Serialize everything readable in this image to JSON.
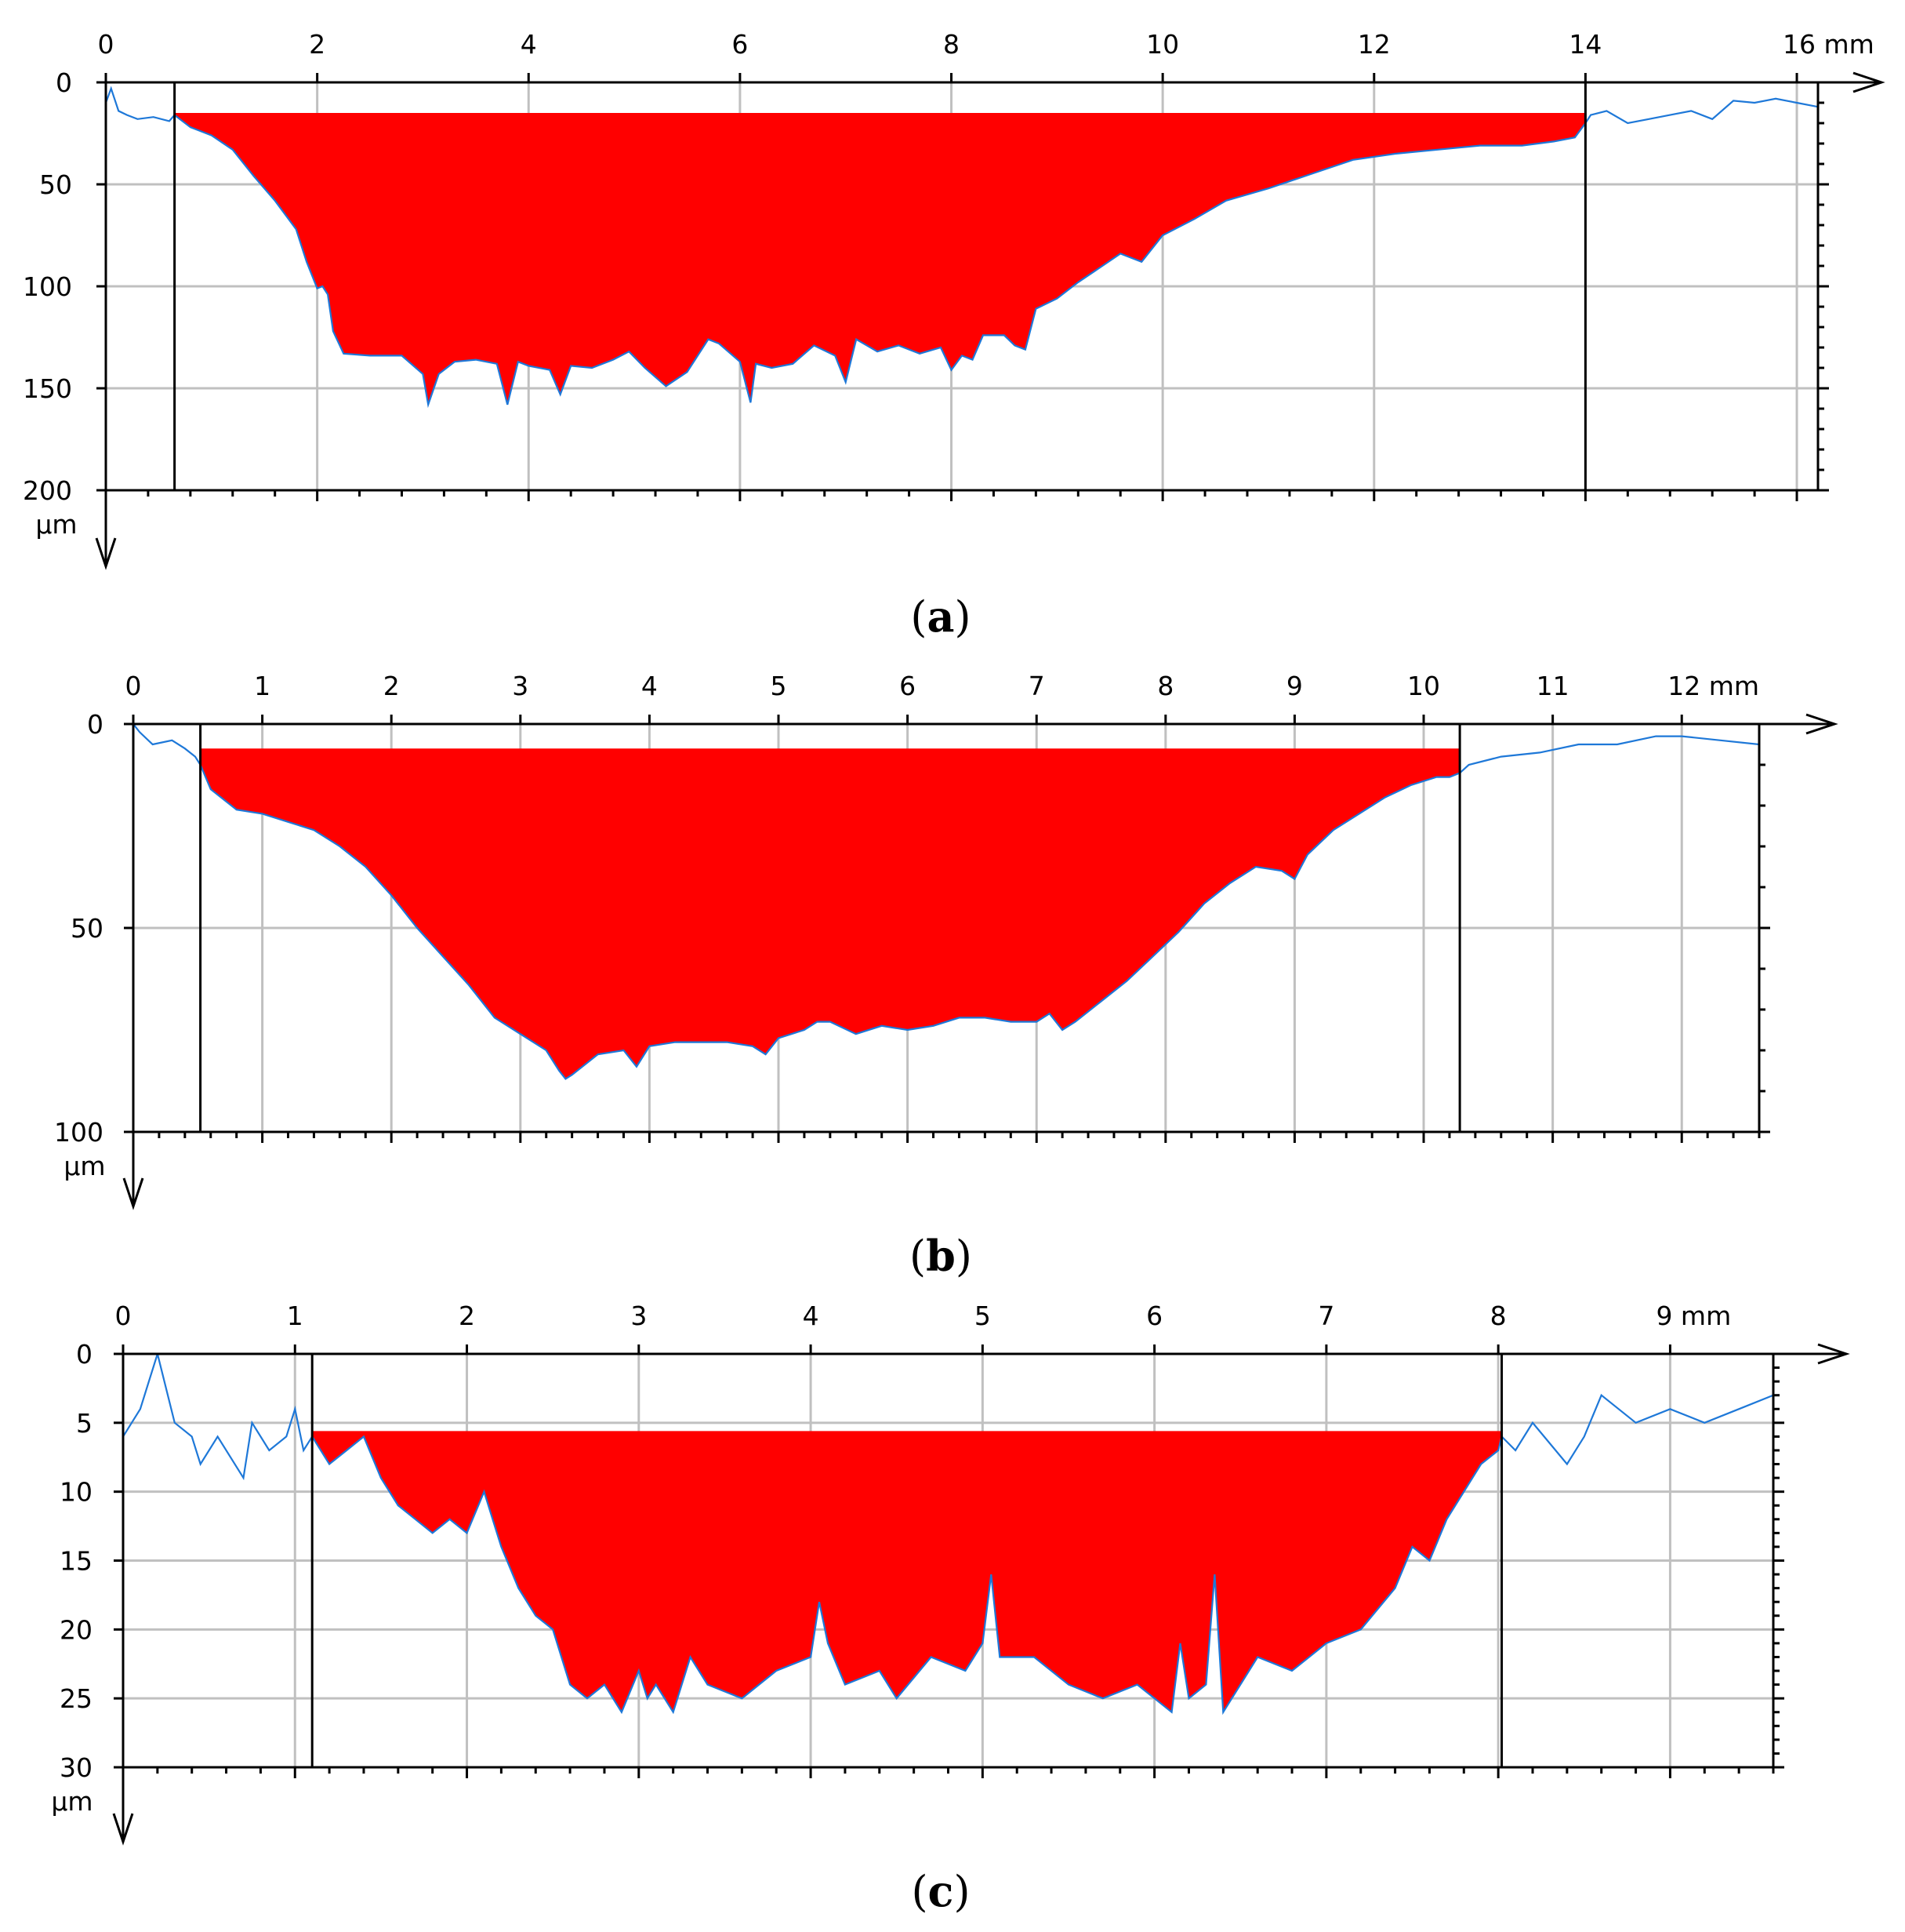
{
  "figure": {
    "background": "#ffffff",
    "colors": {
      "fill": "#ff0000",
      "profile": "#1e78d8",
      "grid": "#c0c0c0",
      "axis": "#000000"
    }
  },
  "chart_data": [
    {
      "type": "area",
      "panel_label": "a",
      "x_unit": "mm",
      "y_unit": "µm",
      "xlim": [
        0,
        16.2
      ],
      "ylim": [
        0,
        200
      ],
      "y_inverted": true,
      "x_ticks": [
        0,
        2,
        4,
        6,
        8,
        10,
        12,
        14,
        16
      ],
      "x_tick_labels": [
        "0",
        "2",
        "4",
        "6",
        "8",
        "10",
        "12",
        "14",
        "16 mm"
      ],
      "y_ticks": [
        0,
        50,
        100,
        150,
        200
      ],
      "y_tick_labels": [
        "0",
        "50",
        "100",
        "150",
        "200"
      ],
      "grid": true,
      "markers_x": [
        0.65,
        14.0
      ],
      "fill_level": 15,
      "profile": {
        "x": [
          0,
          0.05,
          0.12,
          0.2,
          0.3,
          0.45,
          0.6,
          0.65,
          0.8,
          1.0,
          1.2,
          1.4,
          1.6,
          1.8,
          1.9,
          2.0,
          2.05,
          2.1,
          2.15,
          2.25,
          2.5,
          2.8,
          3.0,
          3.05,
          3.15,
          3.3,
          3.5,
          3.7,
          3.8,
          3.9,
          4.0,
          4.2,
          4.3,
          4.4,
          4.6,
          4.8,
          4.95,
          5.1,
          5.3,
          5.5,
          5.7,
          5.8,
          6.0,
          6.1,
          6.15,
          6.3,
          6.5,
          6.7,
          6.9,
          7.0,
          7.1,
          7.3,
          7.5,
          7.7,
          7.9,
          8.0,
          8.1,
          8.2,
          8.3,
          8.5,
          8.6,
          8.7,
          8.8,
          9.0,
          9.2,
          9.4,
          9.6,
          9.8,
          10.0,
          10.3,
          10.6,
          11.0,
          11.4,
          11.8,
          12.2,
          12.6,
          13.0,
          13.4,
          13.7,
          13.9,
          14.0,
          14.05,
          14.2,
          14.4,
          14.6,
          14.8,
          15.0,
          15.2,
          15.4,
          15.6,
          15.8,
          16.0,
          16.2
        ],
        "y": [
          10,
          3,
          14,
          16,
          18,
          17,
          19,
          16,
          22,
          26,
          33,
          46,
          58,
          72,
          88,
          101,
          100,
          104,
          122,
          133,
          134,
          134,
          143,
          158,
          143,
          137,
          136,
          138,
          158,
          137,
          139,
          141,
          153,
          139,
          140,
          136,
          132,
          140,
          149,
          142,
          126,
          128,
          137,
          157,
          138,
          140,
          138,
          129,
          134,
          147,
          126,
          132,
          129,
          133,
          130,
          141,
          134,
          136,
          124,
          124,
          129,
          131,
          111,
          106,
          98,
          91,
          84,
          88,
          75,
          67,
          58,
          52,
          45,
          38,
          35,
          33,
          31,
          31,
          29,
          27,
          20,
          16,
          14,
          20,
          18,
          16,
          14,
          18,
          9,
          10,
          8,
          10,
          12
        ]
      }
    },
    {
      "type": "area",
      "panel_label": "b",
      "x_unit": "mm",
      "y_unit": "µm",
      "xlim": [
        0,
        12.6
      ],
      "ylim": [
        0,
        100
      ],
      "y_inverted": true,
      "x_ticks": [
        0,
        1,
        2,
        3,
        4,
        5,
        6,
        7,
        8,
        9,
        10,
        11,
        12
      ],
      "x_tick_labels": [
        "0",
        "1",
        "2",
        "3",
        "4",
        "5",
        "6",
        "7",
        "8",
        "9",
        "10",
        "11",
        "12 mm"
      ],
      "y_ticks": [
        0,
        50,
        100
      ],
      "y_tick_labels": [
        "0",
        "50",
        "100"
      ],
      "grid": true,
      "markers_x": [
        0.52,
        10.28
      ],
      "fill_level": 6,
      "profile": {
        "x": [
          0,
          0.05,
          0.15,
          0.3,
          0.4,
          0.48,
          0.52,
          0.6,
          0.8,
          1.0,
          1.2,
          1.4,
          1.6,
          1.8,
          2.0,
          2.2,
          2.4,
          2.6,
          2.8,
          3.0,
          3.2,
          3.3,
          3.35,
          3.4,
          3.6,
          3.8,
          3.9,
          4.0,
          4.2,
          4.4,
          4.6,
          4.8,
          4.9,
          5.0,
          5.2,
          5.3,
          5.4,
          5.6,
          5.8,
          6.0,
          6.2,
          6.4,
          6.6,
          6.8,
          7.0,
          7.1,
          7.2,
          7.3,
          7.5,
          7.7,
          7.9,
          8.1,
          8.3,
          8.5,
          8.7,
          8.9,
          9.0,
          9.1,
          9.3,
          9.5,
          9.7,
          9.9,
          10.1,
          10.2,
          10.28,
          10.35,
          10.6,
          10.9,
          11.2,
          11.5,
          11.8,
          12.0,
          12.3,
          12.6
        ],
        "y": [
          0,
          2,
          5,
          4,
          6,
          8,
          10,
          16,
          21,
          22,
          24,
          26,
          30,
          35,
          42,
          50,
          57,
          64,
          72,
          76,
          80,
          85,
          87,
          86,
          81,
          80,
          84,
          79,
          78,
          78,
          78,
          79,
          81,
          77,
          75,
          73,
          73,
          76,
          74,
          75,
          74,
          72,
          72,
          73,
          73,
          71,
          75,
          73,
          68,
          63,
          57,
          51,
          44,
          39,
          35,
          36,
          38,
          32,
          26,
          22,
          18,
          15,
          13,
          13,
          12,
          10,
          8,
          7,
          5,
          5,
          3,
          3,
          4,
          5
        ]
      }
    },
    {
      "type": "area",
      "panel_label": "c",
      "x_unit": "mm",
      "y_unit": "µm",
      "xlim": [
        0,
        9.6
      ],
      "ylim": [
        0,
        30
      ],
      "y_inverted": true,
      "x_ticks": [
        0,
        1,
        2,
        3,
        4,
        5,
        6,
        7,
        8,
        9
      ],
      "x_tick_labels": [
        "0",
        "1",
        "2",
        "3",
        "4",
        "5",
        "6",
        "7",
        "8",
        "9 mm"
      ],
      "y_ticks": [
        0,
        5,
        10,
        15,
        20,
        25,
        30
      ],
      "y_tick_labels": [
        "0",
        "5",
        "10",
        "15",
        "20",
        "25",
        "30"
      ],
      "grid": true,
      "markers_x": [
        1.1,
        8.02
      ],
      "fill_level": 5.6,
      "profile": {
        "x": [
          0,
          0.1,
          0.15,
          0.2,
          0.3,
          0.4,
          0.45,
          0.55,
          0.7,
          0.75,
          0.85,
          0.95,
          1.0,
          1.05,
          1.1,
          1.2,
          1.3,
          1.4,
          1.5,
          1.6,
          1.7,
          1.8,
          1.9,
          2.0,
          2.1,
          2.15,
          2.2,
          2.3,
          2.4,
          2.5,
          2.6,
          2.7,
          2.8,
          2.9,
          3.0,
          3.05,
          3.1,
          3.2,
          3.3,
          3.4,
          3.6,
          3.8,
          4.0,
          4.05,
          4.1,
          4.2,
          4.4,
          4.5,
          4.7,
          4.9,
          5.0,
          5.05,
          5.1,
          5.3,
          5.5,
          5.7,
          5.9,
          6.1,
          6.15,
          6.2,
          6.3,
          6.35,
          6.4,
          6.6,
          6.8,
          7.0,
          7.2,
          7.4,
          7.5,
          7.6,
          7.7,
          7.8,
          7.9,
          8.0,
          8.02,
          8.1,
          8.2,
          8.4,
          8.5,
          8.6,
          8.8,
          9.0,
          9.2,
          9.4,
          9.6
        ],
        "y": [
          6,
          4,
          2,
          0,
          5,
          6,
          8,
          6,
          9,
          5,
          7,
          6,
          4,
          7,
          6,
          8,
          7,
          6,
          9,
          11,
          12,
          13,
          12,
          13,
          10,
          12,
          14,
          17,
          19,
          20,
          24,
          25,
          24,
          26,
          23,
          25,
          24,
          26,
          22,
          24,
          25,
          23,
          22,
          18,
          21,
          24,
          23,
          25,
          22,
          23,
          21,
          16,
          22,
          22,
          24,
          25,
          24,
          26,
          21,
          25,
          24,
          16,
          26,
          22,
          23,
          21,
          20,
          17,
          14,
          15,
          12,
          10,
          8,
          7,
          6,
          7,
          5,
          8,
          6,
          3,
          5,
          4,
          5,
          4,
          3
        ]
      }
    }
  ]
}
